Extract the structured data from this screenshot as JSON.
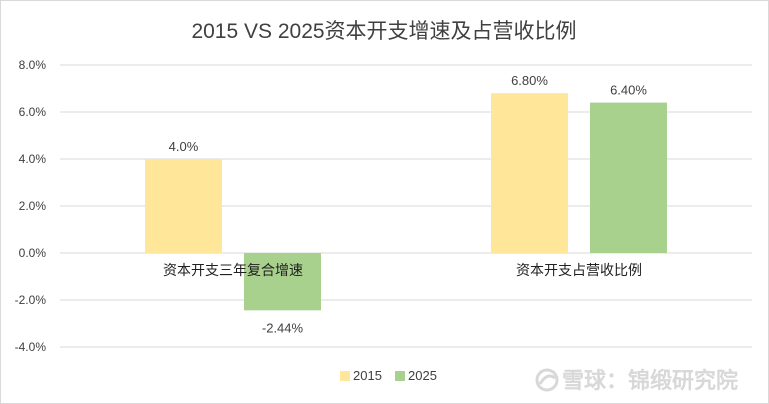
{
  "chart_data": {
    "type": "bar",
    "title": "2015 VS 2025资本开支增速及占营收比例",
    "categories": [
      "资本开支三年复合增速",
      "资本开支占营收比例"
    ],
    "series": [
      {
        "name": "2015",
        "values": [
          4.0,
          6.8
        ],
        "labels": [
          "4.0%",
          "6.80%"
        ],
        "color": "#FFE699"
      },
      {
        "name": "2025",
        "values": [
          -2.44,
          6.4
        ],
        "labels": [
          "-2.44%",
          "6.40%"
        ],
        "color": "#A9D18E"
      }
    ],
    "ylim": [
      -4.0,
      8.0
    ],
    "yticks": [
      "8.0%",
      "6.0%",
      "4.0%",
      "2.0%",
      "0.0%",
      "-2.0%",
      "-4.0%"
    ],
    "ytick_values": [
      8,
      6,
      4,
      2,
      0,
      -2,
      -4
    ],
    "grid": true,
    "legend_position": "bottom"
  },
  "watermark": {
    "text": "雪球：锦缎研究院",
    "icon": "snowball-logo-icon"
  }
}
